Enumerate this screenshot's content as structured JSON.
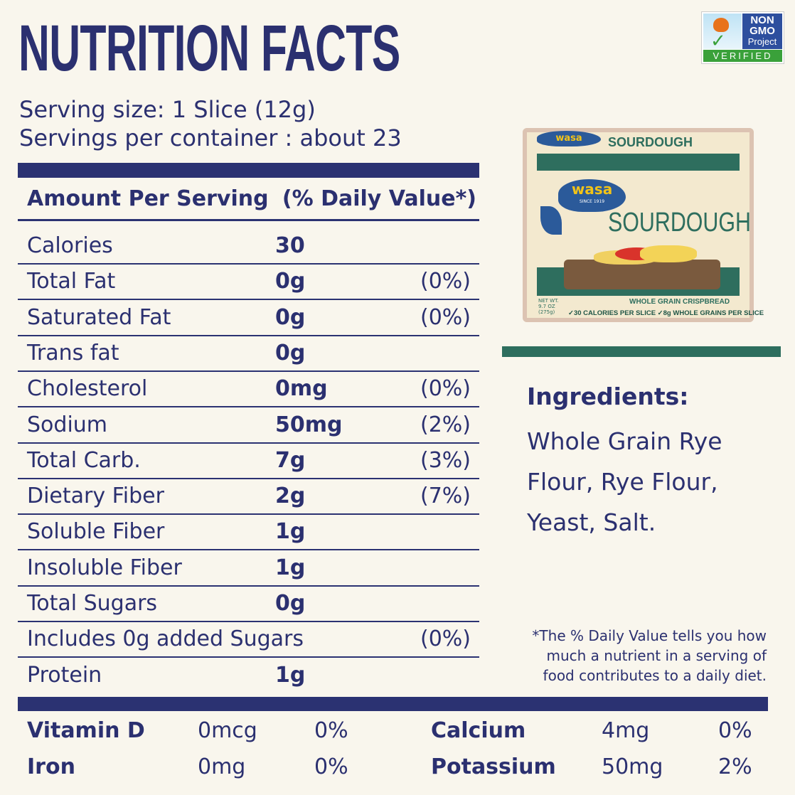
{
  "title": "NUTRITION FACTS",
  "serving_size": "Serving size: 1 Slice (12g)",
  "servings_per_container": "Servings per container : about 23",
  "table": {
    "header_left": "Amount Per Serving",
    "header_right": "(% Daily Value*)",
    "rows": [
      {
        "name": "Calories",
        "amount": "30",
        "dv": ""
      },
      {
        "name": "Total Fat",
        "amount": "0g",
        "dv": "(0%)"
      },
      {
        "name": "Saturated Fat",
        "amount": "0g",
        "dv": "(0%)"
      },
      {
        "name": "Trans fat",
        "amount": "0g",
        "dv": ""
      },
      {
        "name": "Cholesterol",
        "amount": "0mg",
        "dv": "(0%)"
      },
      {
        "name": "Sodium",
        "amount": "50mg",
        "dv": "(2%)"
      },
      {
        "name": "Total Carb.",
        "amount": "7g",
        "dv": "(3%)"
      },
      {
        "name": "Dietary Fiber",
        "amount": "2g",
        "dv": "(7%)"
      },
      {
        "name": "Soluble Fiber",
        "amount": "1g",
        "dv": ""
      },
      {
        "name": "Insoluble Fiber",
        "amount": "1g",
        "dv": ""
      },
      {
        "name": "Total Sugars",
        "amount": "0g",
        "dv": ""
      },
      {
        "name": "Includes 0g added Sugars",
        "amount": "",
        "dv": "(0%)"
      },
      {
        "name": "Protein",
        "amount": "1g",
        "dv": ""
      }
    ]
  },
  "vitamins": [
    {
      "name": "Vitamin D",
      "amount": "0mcg",
      "dv": "0%"
    },
    {
      "name": "Calcium",
      "amount": "4mg",
      "dv": "0%"
    },
    {
      "name": "Iron",
      "amount": "0mg",
      "dv": "0%"
    },
    {
      "name": "Potassium",
      "amount": "50mg",
      "dv": "2%"
    }
  ],
  "ingredients": {
    "title": "Ingredients:",
    "text": "Whole Grain Rye Flour, Rye Flour, Yeast, Salt."
  },
  "footnote": "*The % Daily Value tells you how much a nutrient in a serving of food contributes to a daily diet.",
  "badge": {
    "line1": "NON",
    "line2": "GMO",
    "line3": "Project",
    "line4": "VERIFIED"
  },
  "package": {
    "brand": "wasa",
    "since": "SINCE 1919",
    "product": "SOURDOUGH",
    "subtitle": "WHOLE GRAIN CRISPBREAD",
    "claims": "✓30 CALORIES PER SLICE ✓8g WHOLE GRAINS PER SLICE",
    "net_wt": "NET WT. 9.7 OZ (275g)"
  },
  "colors": {
    "navy": "#2b3272",
    "green": "#2e6e5e",
    "background": "#f9f6ed"
  }
}
